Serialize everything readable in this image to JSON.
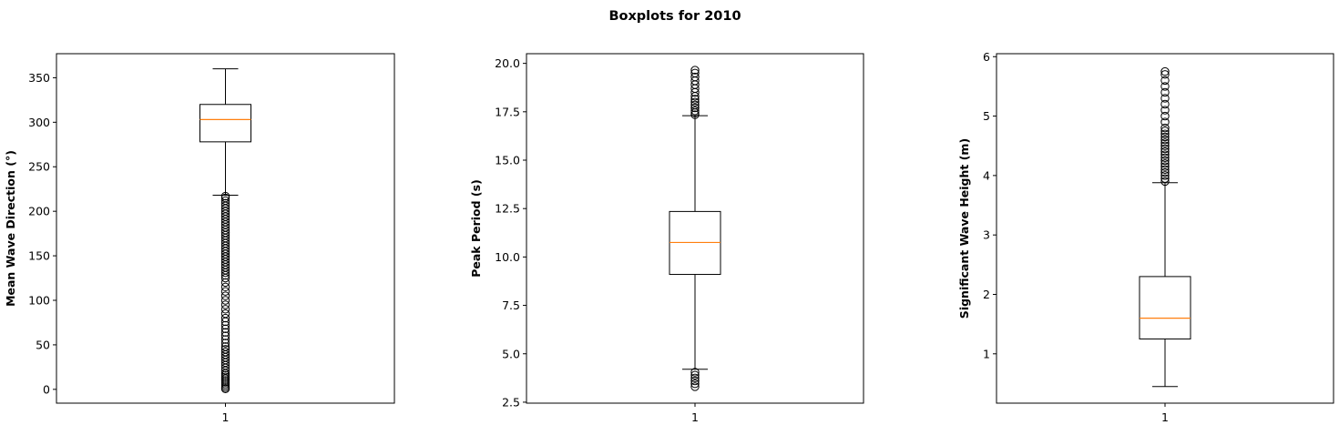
{
  "chart_data": {
    "type": "boxplot",
    "title": "Boxplots for 2010",
    "grid": false,
    "subplots": [
      {
        "ylabel": "Mean Wave Direction (°)",
        "ylim": [
          -15.5,
          377
        ],
        "yticks": [
          0,
          50,
          100,
          150,
          200,
          250,
          300,
          350
        ],
        "ytick_labels": [
          "0",
          "50",
          "100",
          "150",
          "200",
          "250",
          "300",
          "350"
        ],
        "xtick_labels": [
          "1"
        ],
        "box": {
          "whisker_low": 218,
          "q1": 278,
          "median": 303,
          "q3": 320,
          "whisker_high": 360
        },
        "outliers": [
          0.5,
          2,
          4,
          6,
          8,
          10,
          12,
          14,
          16,
          18,
          21,
          24,
          27,
          30,
          33,
          36,
          39,
          42,
          45,
          48,
          52,
          56,
          60,
          64,
          68,
          72,
          76,
          80,
          85,
          90,
          95,
          100,
          105,
          110,
          115,
          120,
          125,
          128,
          131,
          134,
          137,
          140,
          143,
          146,
          149,
          152,
          155,
          158,
          161,
          164,
          167,
          170,
          173,
          176,
          179,
          182,
          185,
          188,
          191,
          194,
          197,
          200,
          203,
          206,
          209,
          212,
          215,
          217
        ]
      },
      {
        "ylabel": "Peak Period (s)",
        "ylim": [
          2.45,
          20.5
        ],
        "yticks": [
          2.5,
          5.0,
          7.5,
          10.0,
          12.5,
          15.0,
          17.5,
          20.0
        ],
        "ytick_labels": [
          "2.5",
          "5.0",
          "7.5",
          "10.0",
          "12.5",
          "15.0",
          "17.5",
          "20.0"
        ],
        "xtick_labels": [
          "1"
        ],
        "box": {
          "whisker_low": 4.2,
          "q1": 9.1,
          "median": 10.75,
          "q3": 12.35,
          "whisker_high": 17.3
        },
        "outliers": [
          3.3,
          3.45,
          3.6,
          3.75,
          3.9,
          4.05,
          17.35,
          17.45,
          17.55,
          17.7,
          17.85,
          18.0,
          18.15,
          18.3,
          18.5,
          18.7,
          18.9,
          19.1,
          19.3,
          19.5,
          19.65
        ]
      },
      {
        "ylabel": "Significant Wave Height (m)",
        "ylim": [
          0.17,
          6.05
        ],
        "yticks": [
          1,
          2,
          3,
          4,
          5,
          6
        ],
        "ytick_labels": [
          "1",
          "2",
          "3",
          "4",
          "5",
          "6"
        ],
        "xtick_labels": [
          "1"
        ],
        "box": {
          "whisker_low": 0.45,
          "q1": 1.25,
          "median": 1.6,
          "q3": 2.3,
          "whisker_high": 3.88
        },
        "outliers": [
          3.9,
          3.95,
          4.0,
          4.05,
          4.1,
          4.15,
          4.2,
          4.25,
          4.3,
          4.35,
          4.4,
          4.45,
          4.5,
          4.55,
          4.6,
          4.65,
          4.7,
          4.75,
          4.8,
          4.9,
          5.0,
          5.1,
          5.2,
          5.3,
          5.4,
          5.5,
          5.6,
          5.7,
          5.75
        ]
      }
    ]
  },
  "colors": {
    "box_edge": "#000000",
    "median": "#ff7f0e",
    "outlier_edge": "#000000",
    "background": "#ffffff"
  }
}
